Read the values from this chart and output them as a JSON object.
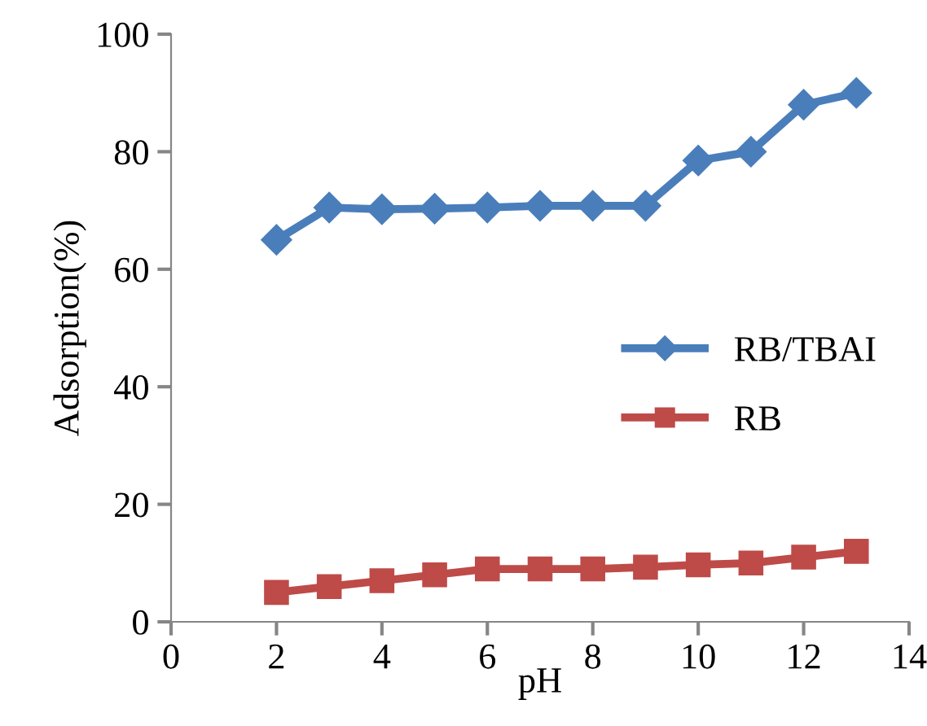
{
  "chart_data": {
    "type": "line",
    "xlabel": "pH",
    "ylabel": "Adsorption(%)",
    "x": [
      2,
      3,
      4,
      5,
      6,
      7,
      8,
      9,
      10,
      11,
      12,
      13
    ],
    "series": [
      {
        "name": "RB/TBAI",
        "color": "#4a7ebb",
        "marker": "diamond",
        "values": [
          65,
          70.5,
          70.2,
          70.3,
          70.5,
          70.8,
          70.8,
          70.8,
          78.5,
          80,
          88,
          90
        ]
      },
      {
        "name": "RB",
        "color": "#be4b48",
        "marker": "square",
        "values": [
          5,
          6,
          7,
          8,
          9,
          9,
          9,
          9.3,
          9.7,
          10,
          11,
          12
        ]
      }
    ],
    "xlim": [
      0,
      14
    ],
    "xticks": [
      0,
      2,
      4,
      6,
      8,
      10,
      12,
      14
    ],
    "ylim": [
      0,
      100
    ],
    "yticks": [
      0,
      20,
      40,
      60,
      80,
      100
    ],
    "grid": false,
    "legend": "right",
    "line_style": "solid"
  }
}
